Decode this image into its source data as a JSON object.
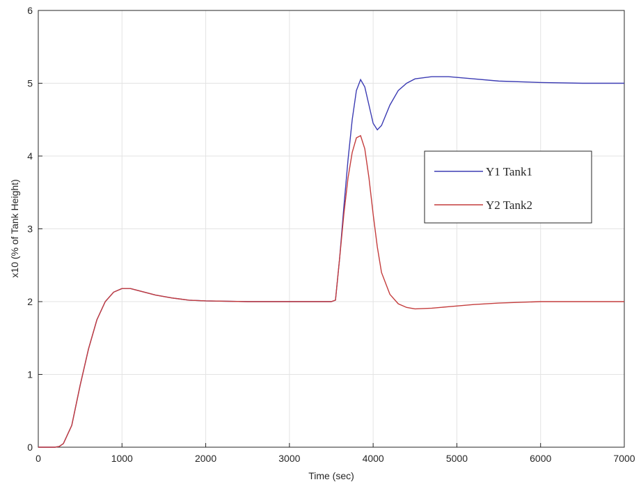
{
  "chart_data": {
    "type": "line",
    "xlabel": "Time (sec)",
    "ylabel": "x10 (% of Tank Height)",
    "x": [
      0,
      200,
      250,
      300,
      400,
      500,
      600,
      700,
      800,
      900,
      1000,
      1100,
      1200,
      1400,
      1600,
      1800,
      2000,
      2500,
      3000,
      3500,
      3550,
      3600,
      3650,
      3700,
      3750,
      3800,
      3850,
      3900,
      3950,
      4000,
      4050,
      4100,
      4200,
      4300,
      4400,
      4500,
      4700,
      4900,
      5200,
      5500,
      6000,
      6500,
      7000
    ],
    "series": [
      {
        "name": "Y1 Tank1",
        "color": "#3b3bb3",
        "values": [
          0,
          0,
          0.01,
          0.05,
          0.3,
          0.85,
          1.35,
          1.75,
          2.0,
          2.13,
          2.18,
          2.18,
          2.15,
          2.09,
          2.05,
          2.02,
          2.01,
          2.0,
          2.0,
          2.0,
          2.02,
          2.6,
          3.3,
          3.95,
          4.5,
          4.9,
          5.05,
          4.95,
          4.7,
          4.45,
          4.36,
          4.42,
          4.7,
          4.9,
          5.0,
          5.06,
          5.09,
          5.09,
          5.06,
          5.03,
          5.01,
          5.0,
          5.0
        ]
      },
      {
        "name": "Y2 Tank2",
        "color": "#c43c3c",
        "values": [
          0,
          0,
          0.01,
          0.05,
          0.3,
          0.85,
          1.35,
          1.75,
          2.0,
          2.13,
          2.18,
          2.18,
          2.15,
          2.09,
          2.05,
          2.02,
          2.01,
          2.0,
          2.0,
          2.0,
          2.02,
          2.6,
          3.2,
          3.7,
          4.05,
          4.25,
          4.28,
          4.1,
          3.7,
          3.2,
          2.75,
          2.4,
          2.1,
          1.97,
          1.92,
          1.9,
          1.91,
          1.93,
          1.96,
          1.98,
          2.0,
          2.0,
          2.0
        ]
      }
    ],
    "xlim": [
      0,
      7000
    ],
    "xticks": [
      0,
      1000,
      2000,
      3000,
      4000,
      5000,
      6000,
      7000
    ],
    "ylim": [
      0,
      6
    ],
    "yticks": [
      0,
      1,
      2,
      3,
      4,
      5,
      6
    ],
    "grid": true,
    "legend": "east"
  }
}
